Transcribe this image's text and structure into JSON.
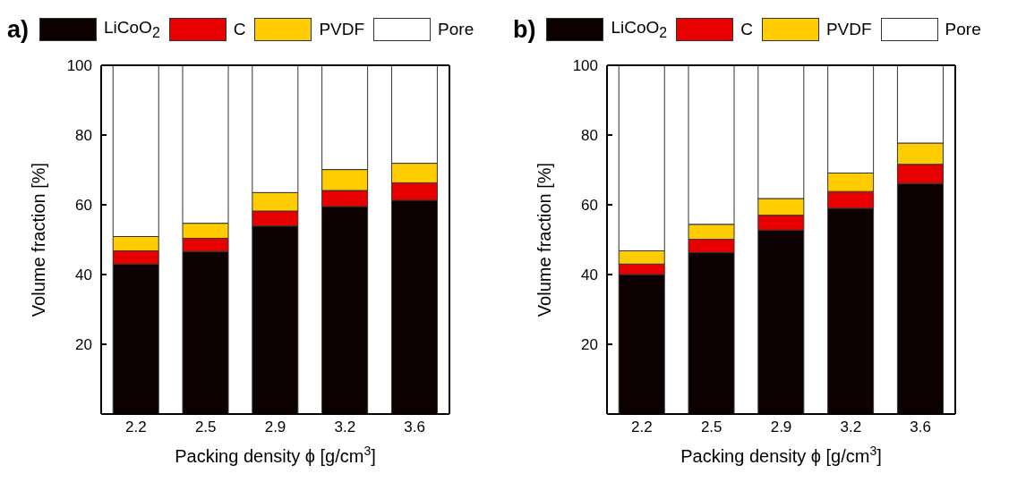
{
  "chart_data": [
    {
      "type": "bar",
      "title": "a)",
      "stacked": true,
      "legend": "top",
      "categories": [
        "2.2",
        "2.5",
        "2.9",
        "3.2",
        "3.6"
      ],
      "xlabel": "Packing density ϕ [g/cm$^{3}$]",
      "ylabel": "Volume fraction [%]",
      "ylim": [
        0,
        100
      ],
      "yticks": [
        20,
        40,
        60,
        80,
        100
      ],
      "series": [
        {
          "name": "LiCoO$_{2}$",
          "color": "#0c0000",
          "values": [
            43,
            46.6,
            53.9,
            59.5,
            61.3
          ]
        },
        {
          "name": "C",
          "color": "#e80000",
          "values": [
            3.8,
            3.8,
            4.3,
            4.6,
            5
          ]
        },
        {
          "name": "PVDF",
          "color": "#ffcc00",
          "values": [
            4.1,
            4.3,
            5.3,
            6,
            5.6
          ]
        },
        {
          "name": "Pore",
          "color": "#ffffff",
          "values": [
            49.1,
            45.3,
            36.5,
            29.9,
            28.1
          ]
        }
      ]
    },
    {
      "type": "bar",
      "title": "b)",
      "stacked": true,
      "legend": "top",
      "categories": [
        "2.2",
        "2.5",
        "2.9",
        "3.2",
        "3.6"
      ],
      "xlabel": "Packing density ϕ [g/cm$^{3}$]",
      "ylabel": "Volume fraction [%]",
      "ylim": [
        0,
        100
      ],
      "yticks": [
        20,
        40,
        60,
        80,
        100
      ],
      "series": [
        {
          "name": "LiCoO$_{2}$",
          "color": "#0c0000",
          "values": [
            40,
            46.3,
            52.7,
            59,
            66.1
          ]
        },
        {
          "name": "C",
          "color": "#e80000",
          "values": [
            3,
            3.8,
            4.3,
            4.8,
            5.5
          ]
        },
        {
          "name": "PVDF",
          "color": "#ffcc00",
          "values": [
            3.8,
            4.3,
            4.8,
            5.3,
            6.1
          ]
        },
        {
          "name": "Pore",
          "color": "#ffffff",
          "values": [
            53.2,
            45.6,
            38.2,
            30.9,
            22.3
          ]
        }
      ]
    }
  ]
}
